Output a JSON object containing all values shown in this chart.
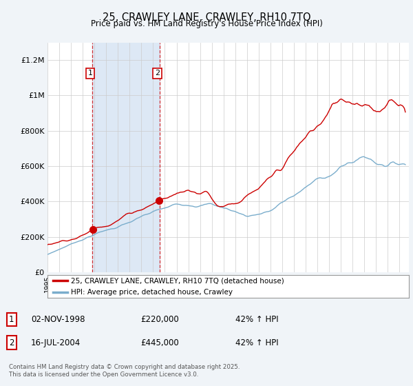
{
  "title": "25, CRAWLEY LANE, CRAWLEY, RH10 7TQ",
  "subtitle": "Price paid vs. HM Land Registry's House Price Index (HPI)",
  "background_color": "#f0f4f8",
  "plot_bg_color": "#ffffff",
  "ylim": [
    0,
    1300000
  ],
  "yticks": [
    0,
    200000,
    400000,
    600000,
    800000,
    1000000,
    1200000
  ],
  "ylabel_map": {
    "0": "£0",
    "200000": "£200K",
    "400000": "£400K",
    "600000": "£600K",
    "800000": "£800K",
    "1000000": "£1M",
    "1200000": "£1.2M"
  },
  "transaction1_date": 1998.84,
  "transaction1_price": 220000,
  "transaction2_date": 2004.54,
  "transaction2_price": 445000,
  "shade_x1": 1998.84,
  "shade_x2": 2004.54,
  "legend_red": "25, CRAWLEY LANE, CRAWLEY, RH10 7TQ (detached house)",
  "legend_blue": "HPI: Average price, detached house, Crawley",
  "table": [
    {
      "num": "1",
      "date": "02-NOV-1998",
      "price": "£220,000",
      "change": "42% ↑ HPI"
    },
    {
      "num": "2",
      "date": "16-JUL-2004",
      "price": "£445,000",
      "change": "42% ↑ HPI"
    }
  ],
  "footer": "Contains HM Land Registry data © Crown copyright and database right 2025.\nThis data is licensed under the Open Government Licence v3.0.",
  "red_color": "#cc0000",
  "blue_color": "#7aadcc",
  "shade_color": "#dde8f5",
  "xlim_start": 1995,
  "xlim_end": 2025.8
}
